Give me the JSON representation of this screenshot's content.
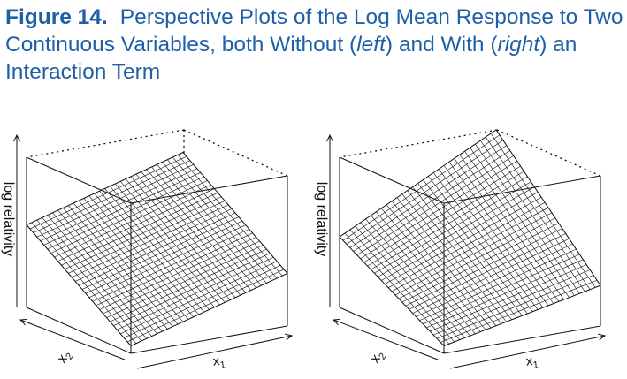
{
  "caption": {
    "label": "Figure 14.",
    "p1": "Perspective Plots of the Log Mean Response to Two Continuous Variables, both Without (",
    "left_word": "left",
    "p2": ") and With (",
    "right_word": "right",
    "p3": ") an Interaction Term"
  },
  "chart_data": [
    {
      "type": "surface",
      "panel": "left",
      "zlabel": "log relativity",
      "x2_label": "x",
      "x2_sub": "2",
      "x1_label": "x",
      "x1_sub": "1",
      "grid_lines": 30,
      "interaction": false,
      "z_corners": {
        "x1_min_x2_min": 0.05,
        "x1_max_x2_min": 0.35,
        "x1_min_x2_max": 0.55,
        "x1_max_x2_max": 0.85
      }
    },
    {
      "type": "surface",
      "panel": "right",
      "zlabel": "log relativity",
      "x2_label": "x",
      "x2_sub": "2",
      "x1_label": "x",
      "x1_sub": "1",
      "grid_lines": 30,
      "interaction": true,
      "z_corners": {
        "x1_min_x2_min": 0.05,
        "x1_max_x2_min": 0.27,
        "x1_min_x2_max": 0.47,
        "x1_max_x2_max": 1.0
      }
    }
  ],
  "colors": {
    "caption": "#1f5fa8",
    "ink": "#111111"
  }
}
